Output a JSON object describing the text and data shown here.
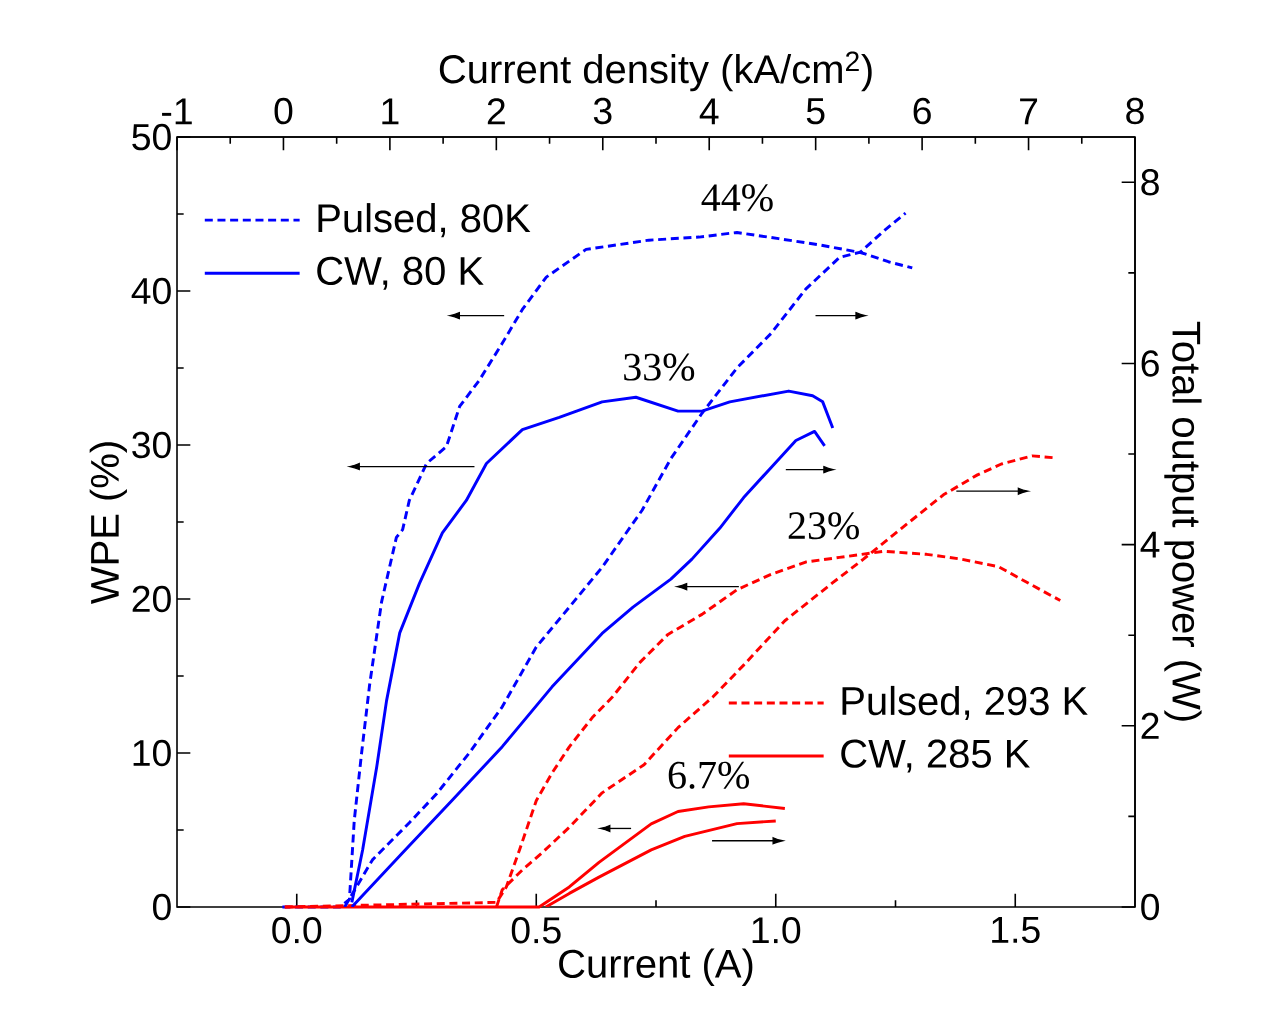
{
  "chart_data": {
    "type": "line",
    "xlabel": "Current (A)",
    "ylabel": "WPE (%)",
    "y2label": "Total output power (W)",
    "x2label": "Current density (kA/cm$^{2}$)",
    "xlim": [
      -0.25,
      1.75
    ],
    "xticks": [
      {
        "value": 0,
        "label": "0.0"
      },
      {
        "value": 0.5,
        "label": "0.5"
      },
      {
        "value": 1,
        "label": "1.0"
      },
      {
        "value": 1.5,
        "label": "1.5"
      }
    ],
    "ylim": [
      0,
      50
    ],
    "yticks": [
      0,
      10,
      20,
      30,
      40,
      50
    ],
    "y2lim": [
      0,
      8.5
    ],
    "y2ticks": [
      0,
      2,
      4,
      6,
      8
    ],
    "x2lim": [
      -1,
      8
    ],
    "x2ticks": [
      -1,
      0,
      1,
      2,
      3,
      4,
      5,
      6,
      7,
      8
    ],
    "legend": "top left",
    "annotations": [
      {
        "text": "44%",
        "x": 0.92,
        "y": 44
      },
      {
        "text": "33%",
        "x": 0.756,
        "y": 33
      },
      {
        "text": "23%",
        "x": 1.1,
        "y": 22.7
      },
      {
        "text": "6.7%",
        "x": 0.86,
        "y": 6.5
      }
    ],
    "series": [
      {
        "name": "Pulsed, 80K",
        "color": "#0000ff",
        "line_style": "dashed",
        "x": [
          -0.03,
          0.09,
          0.11,
          0.12,
          0.135,
          0.152,
          0.177,
          0.208,
          0.221,
          0.235,
          0.271,
          0.3125,
          0.34,
          0.381,
          0.429,
          0.471,
          0.521,
          0.604,
          0.735,
          0.84,
          0.919,
          1.006,
          1.09,
          1.177,
          1.235,
          1.285
        ],
        "values": [
          0,
          0,
          0.5,
          5.6,
          9.9,
          14.4,
          19.8,
          24.0,
          24.5,
          26.4,
          28.8,
          29.9,
          32.5,
          34.2,
          36.6,
          38.8,
          40.9,
          42.7,
          43.3,
          43.5,
          43.8,
          43.4,
          43.0,
          42.5,
          41.9,
          41.5
        ]
      },
      {
        "color": "#0000ff",
        "line_style": "dashed",
        "axis": "y2",
        "x": [
          0.1,
          0.158,
          0.235,
          0.292,
          0.36,
          0.429,
          0.5,
          0.569,
          0.6375,
          0.721,
          0.781,
          0.846,
          0.919,
          0.99,
          1.0625,
          1.133,
          1.177,
          1.227,
          1.271
        ],
        "values": [
          0,
          0.52,
          0.93,
          1.25,
          1.7,
          2.21,
          2.87,
          3.31,
          3.75,
          4.38,
          4.95,
          5.45,
          5.95,
          6.33,
          6.82,
          7.17,
          7.23,
          7.47,
          7.66
        ]
      },
      {
        "name": "CW, 80 K",
        "color": "#0000ff",
        "line_style": "solid",
        "x": [
          0.115,
          0.1375,
          0.167,
          0.1875,
          0.215,
          0.256,
          0.304,
          0.354,
          0.396,
          0.471,
          0.548,
          0.6375,
          0.708,
          0.796,
          0.846,
          0.904,
          1.027,
          1.077,
          1.098,
          1.119
        ],
        "values": [
          0.3,
          3.7,
          9.1,
          13.4,
          17.8,
          21.0,
          24.3,
          26.4,
          28.8,
          31.0,
          31.8,
          32.8,
          33.1,
          32.2,
          32.2,
          32.8,
          33.5,
          33.2,
          32.8,
          31.1
        ]
      },
      {
        "color": "#0000ff",
        "line_style": "solid",
        "axis": "y2",
        "x": [
          0.115,
          0.221,
          0.325,
          0.429,
          0.533,
          0.6375,
          0.702,
          0.781,
          0.825,
          0.883,
          0.933,
          0.99,
          1.042,
          1.081,
          1.102
        ],
        "values": [
          0,
          0.6,
          1.18,
          1.77,
          2.43,
          3.02,
          3.31,
          3.62,
          3.84,
          4.18,
          4.52,
          4.85,
          5.15,
          5.25,
          5.09
        ]
      },
      {
        "name": "Pulsed, 293 K",
        "color": "#ff0000",
        "line_style": "dashed",
        "x": [
          -0.025,
          0.417,
          0.4375,
          0.465,
          0.5,
          0.533,
          0.569,
          0.617,
          0.658,
          0.717,
          0.775,
          0.846,
          0.919,
          0.99,
          1.0625,
          1.133,
          1.227,
          1.315,
          1.385,
          1.465,
          1.529,
          1.594
        ],
        "values": [
          0,
          0.3,
          1.3,
          3.7,
          6.9,
          8.7,
          10.4,
          12.3,
          13.6,
          15.9,
          17.7,
          19.0,
          20.6,
          21.6,
          22.4,
          22.7,
          23.1,
          22.9,
          22.6,
          22.1,
          21.0,
          19.9
        ]
      },
      {
        "color": "#ff0000",
        "line_style": "dashed",
        "axis": "y2",
        "x": [
          0.417,
          0.429,
          0.471,
          0.5125,
          0.569,
          0.6375,
          0.725,
          0.796,
          0.869,
          0.933,
          1.019,
          1.119,
          1.183,
          1.2625,
          1.35,
          1.421,
          1.471,
          1.535,
          1.579
        ],
        "values": [
          0,
          0.19,
          0.41,
          0.6,
          0.88,
          1.26,
          1.57,
          1.98,
          2.32,
          2.67,
          3.16,
          3.58,
          3.84,
          4.18,
          4.55,
          4.77,
          4.89,
          4.98,
          4.96
        ]
      },
      {
        "name": "CW, 285 K",
        "color": "#ff0000",
        "line_style": "solid",
        "x": [
          -0.025,
          0.506,
          0.569,
          0.631,
          0.74,
          0.796,
          0.86,
          0.933,
          1.019
        ],
        "values": [
          0,
          0,
          1.3,
          2.9,
          5.4,
          6.2,
          6.5,
          6.7,
          6.4
        ]
      },
      {
        "color": "#ff0000",
        "line_style": "solid",
        "axis": "y2",
        "x": [
          0.52,
          0.569,
          0.631,
          0.74,
          0.81,
          0.919,
          1.0
        ],
        "values": [
          0,
          0.15,
          0.33,
          0.63,
          0.78,
          0.92,
          0.95
        ]
      }
    ]
  }
}
